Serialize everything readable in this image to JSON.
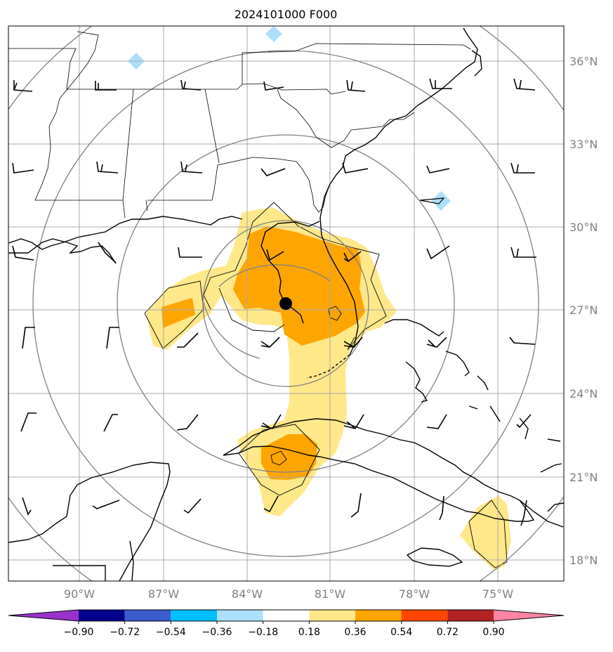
{
  "title": "2024101000 F000",
  "lon_labels": [
    "90°W",
    "87°W",
    "84°W",
    "81°W",
    "78°W",
    "75°W"
  ],
  "lat_labels": [
    "36°N",
    "33°N",
    "30°N",
    "27°N",
    "24°N",
    "21°N",
    "18°N"
  ],
  "colorbar": {
    "tick_labels": [
      "−0.90",
      "−0.72",
      "−0.54",
      "−0.36",
      "−0.18",
      "0.18",
      "0.36",
      "0.54",
      "0.72",
      "0.90"
    ],
    "colors": [
      "#9932CC",
      "#00008B",
      "#3A5BCC",
      "#00BFFF",
      "#ADDFFA",
      "#FFFFFF",
      "#FFE88A",
      "#FFA500",
      "#FF4500",
      "#B22222",
      "#FF85A6"
    ]
  },
  "storm_center": {
    "lat": 27.3,
    "lon": -82.3
  },
  "colors": {
    "coast": "#000000",
    "grid": "#a8a8a8",
    "rings": "#808080",
    "light_yellow": "#FFE88A",
    "orange": "#FFA500",
    "light_blue": "#ADDFFA"
  },
  "icons": [
    "storm-center-marker",
    "wind-barb-icon"
  ]
}
